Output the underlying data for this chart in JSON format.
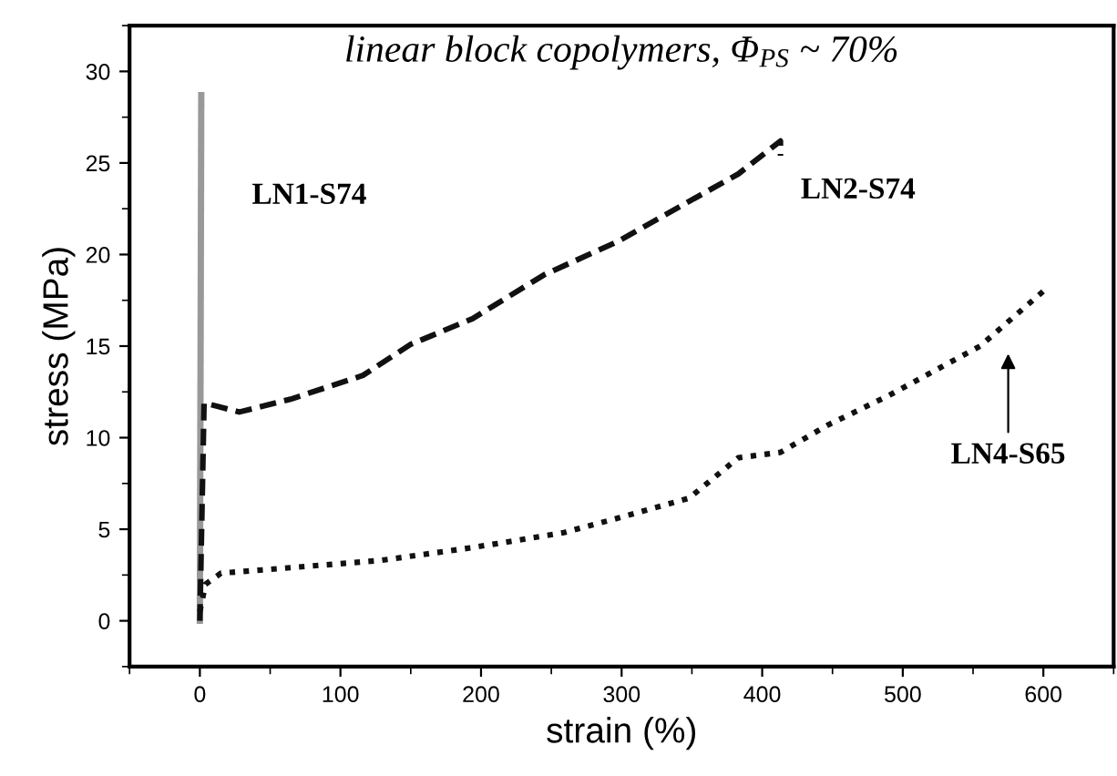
{
  "chart_data": {
    "type": "line",
    "title": "linear block copolymers, Φ$_{PS}$ ~ 70%",
    "xlabel": "strain (%)",
    "ylabel": "stress (MPa)",
    "xlim": [
      -50,
      650
    ],
    "ylim": [
      -2.5,
      32.5
    ],
    "xticks": [
      0,
      100,
      200,
      300,
      400,
      500,
      600
    ],
    "yticks": [
      0,
      5,
      10,
      15,
      20,
      25,
      30
    ],
    "grid": false,
    "legend": false,
    "series": [
      {
        "name": "LN1-S74",
        "color": "#999999",
        "line_style": "solid",
        "x": [
          0,
          1
        ],
        "values": [
          0,
          28.7
        ]
      },
      {
        "name": "LN2-S74",
        "color": "#111111",
        "line_style": "dashed",
        "x": [
          0,
          3,
          28,
          64.5,
          116,
          150,
          194,
          245,
          297,
          348,
          383,
          413,
          413
        ],
        "values": [
          0,
          11.9,
          11.4,
          12.1,
          13.4,
          15.1,
          16.5,
          18.9,
          20.7,
          22.9,
          24.4,
          26.2,
          25.4
        ]
      },
      {
        "name": "LN4-S65",
        "color": "#111111",
        "line_style": "dotted",
        "x": [
          0,
          4,
          15,
          64.5,
          129,
          194,
          258,
          297,
          348,
          383,
          413,
          447,
          490,
          555,
          600
        ],
        "values": [
          0.5,
          2.0,
          2.6,
          2.9,
          3.3,
          4.0,
          4.8,
          5.6,
          6.7,
          8.9,
          9.2,
          10.7,
          12.3,
          15.0,
          18.0
        ]
      }
    ]
  }
}
